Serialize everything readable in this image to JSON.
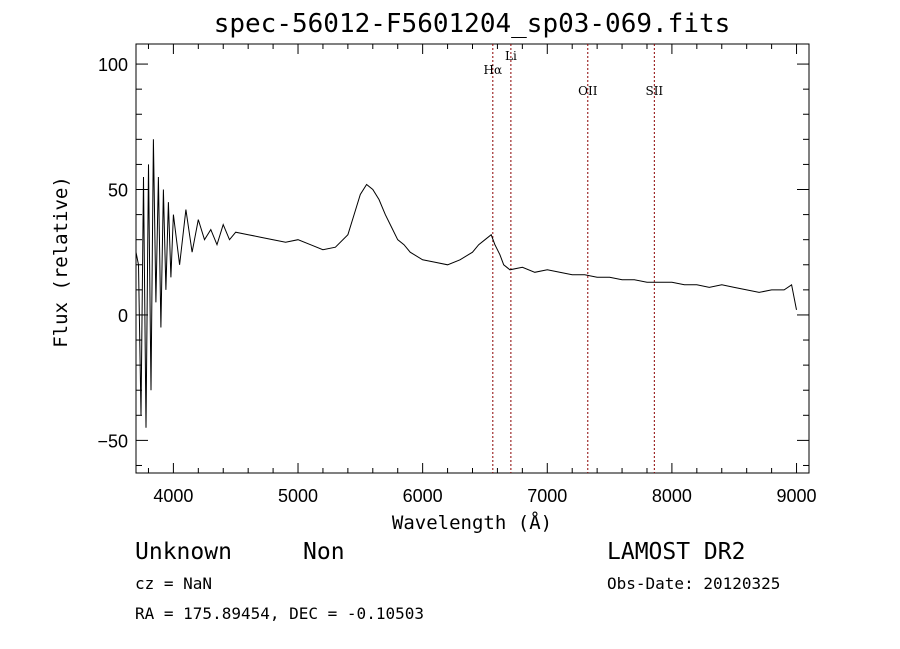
{
  "chart_data": {
    "type": "line",
    "title": "spec-56012-F5601204_sp03-069.fits",
    "xlabel": "Wavelength (Å)",
    "ylabel": "Flux (relative)",
    "xlim": [
      3700,
      9100
    ],
    "ylim": [
      -63,
      108
    ],
    "x_ticks": [
      4000,
      5000,
      6000,
      7000,
      8000,
      9000
    ],
    "y_ticks": [
      -50,
      0,
      50,
      100
    ],
    "x_tick_labels": [
      "4000",
      "5000",
      "6000",
      "7000",
      "8000",
      "9000"
    ],
    "y_tick_labels": [
      "−50",
      "0",
      "50",
      "100"
    ],
    "grid": false,
    "spectrum": {
      "x": [
        3700,
        3720,
        3740,
        3760,
        3780,
        3800,
        3820,
        3840,
        3860,
        3880,
        3900,
        3920,
        3940,
        3960,
        3980,
        4000,
        4050,
        4100,
        4150,
        4200,
        4250,
        4300,
        4350,
        4400,
        4450,
        4500,
        4600,
        4700,
        4800,
        4900,
        5000,
        5100,
        5200,
        5300,
        5400,
        5450,
        5500,
        5550,
        5600,
        5650,
        5700,
        5750,
        5800,
        5850,
        5900,
        6000,
        6100,
        6200,
        6300,
        6400,
        6450,
        6500,
        6550,
        6580,
        6620,
        6650,
        6700,
        6800,
        6900,
        7000,
        7100,
        7200,
        7300,
        7400,
        7500,
        7600,
        7700,
        7800,
        7900,
        8000,
        8100,
        8200,
        8300,
        8400,
        8500,
        8600,
        8700,
        8800,
        8900,
        8960,
        9000
      ],
      "y": [
        25,
        20,
        -40,
        55,
        -45,
        60,
        -30,
        70,
        5,
        55,
        -5,
        50,
        10,
        45,
        15,
        40,
        20,
        42,
        25,
        38,
        30,
        34,
        28,
        36,
        30,
        33,
        32,
        31,
        30,
        29,
        30,
        28,
        26,
        27,
        32,
        40,
        48,
        52,
        50,
        46,
        40,
        35,
        30,
        28,
        25,
        22,
        21,
        20,
        22,
        25,
        28,
        30,
        32,
        28,
        24,
        20,
        18,
        19,
        17,
        18,
        17,
        16,
        16,
        15,
        15,
        14,
        14,
        13,
        13,
        13,
        12,
        12,
        11,
        12,
        11,
        10,
        9,
        10,
        10,
        12,
        2
      ]
    },
    "emission_lines": [
      {
        "label": "Hα",
        "wavelength": 6563
      },
      {
        "label": "Li",
        "wavelength": 6708
      },
      {
        "label": "OII",
        "wavelength": 7325
      },
      {
        "label": "SII",
        "wavelength": 7859
      }
    ]
  },
  "info": {
    "class_text": "Unknown",
    "subclass_text": "Non",
    "survey": "LAMOST DR2",
    "cz": "cz = NaN",
    "obs_date": "Obs-Date: 20120325",
    "coords": "RA = 175.89454, DEC =  -0.10503"
  },
  "colors": {
    "line": "#000000",
    "marker_lines": "#8b0000"
  }
}
